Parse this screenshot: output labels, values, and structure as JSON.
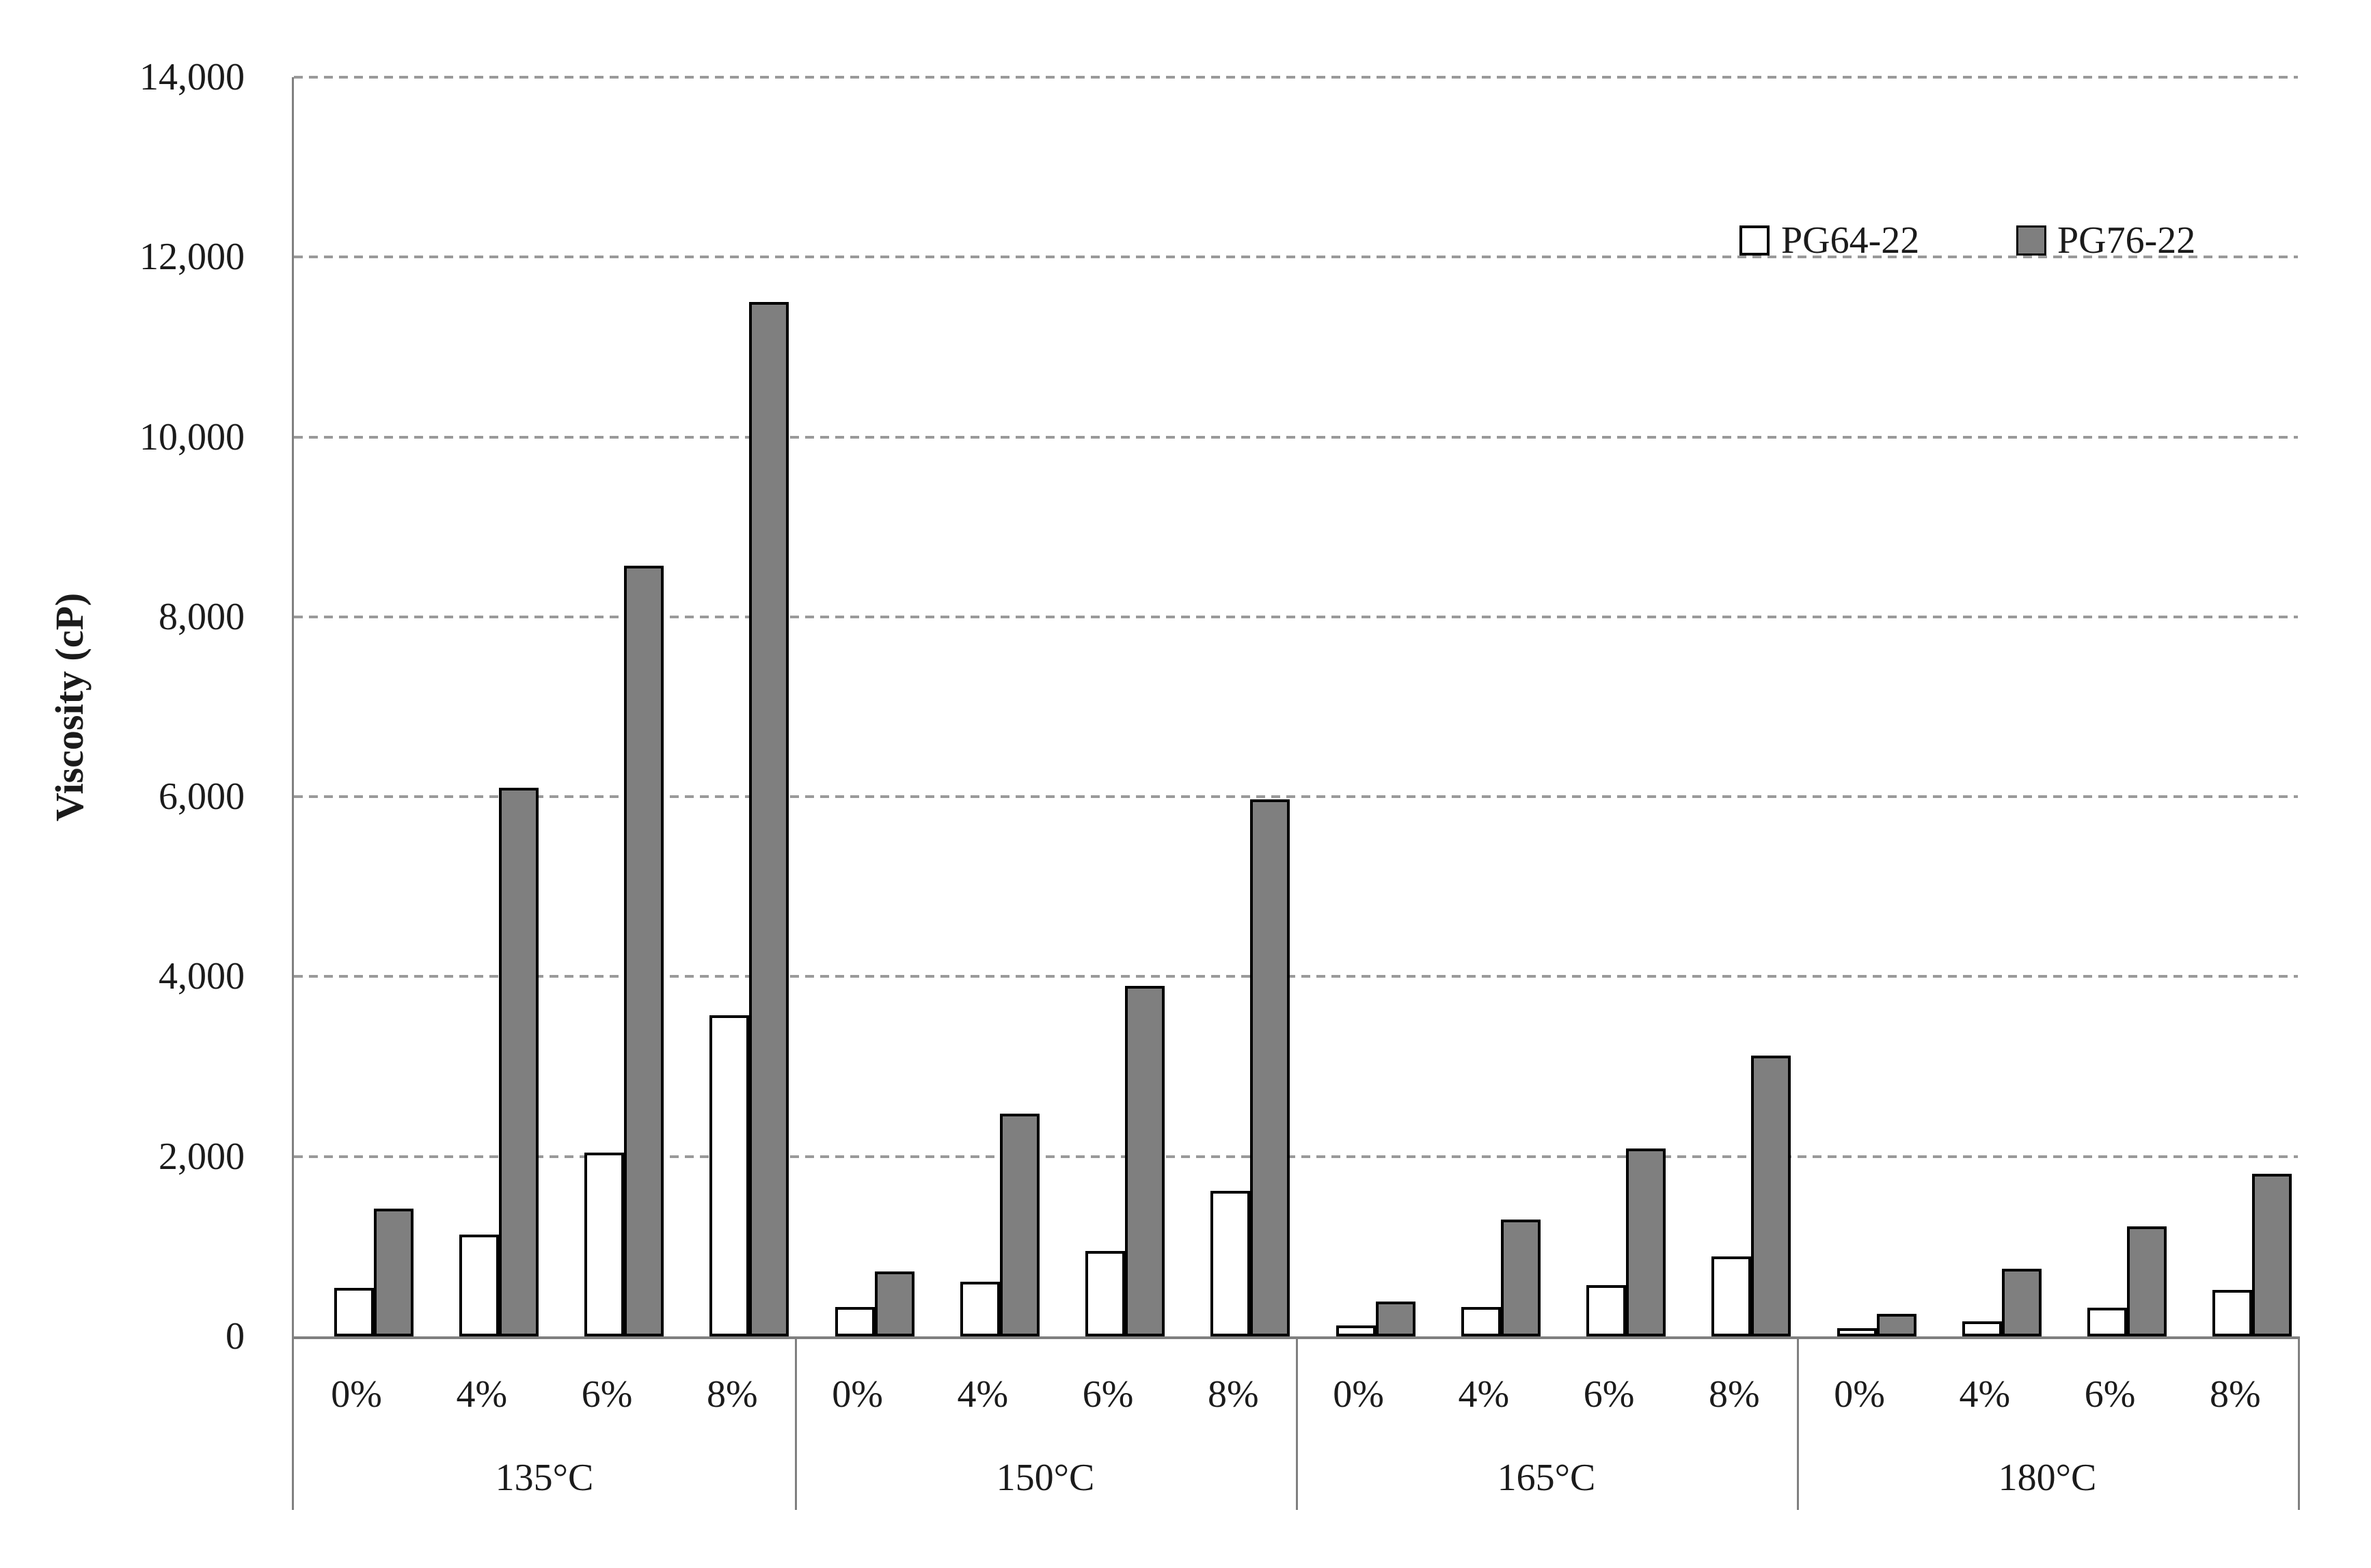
{
  "chart_data": {
    "type": "bar",
    "title": "",
    "xlabel": "",
    "ylabel": "Viscosity (cP)",
    "ylim": [
      0,
      14000
    ],
    "ytick_step": 2000,
    "yticks": [
      0,
      2000,
      4000,
      6000,
      8000,
      10000,
      12000,
      14000
    ],
    "ytick_labels": [
      "0",
      "2,000",
      "4,000",
      "6,000",
      "8,000",
      "10,000",
      "12,000",
      "14,000"
    ],
    "grid": "horizontal-dashed",
    "legend_position": "top-right-inside",
    "group_labels": [
      "135°C",
      "150°C",
      "165°C",
      "180°C"
    ],
    "categories": [
      "0%",
      "4%",
      "6%",
      "8%"
    ],
    "series": [
      {
        "name": "PG64-22",
        "fill": "#ffffff",
        "border": "#000000",
        "values": [
          [
            540,
            1130,
            2040,
            3570
          ],
          [
            330,
            610,
            950,
            1620
          ],
          [
            120,
            330,
            570,
            890
          ],
          [
            90,
            170,
            320,
            520
          ]
        ]
      },
      {
        "name": "PG76-22",
        "fill": "#7f7f7f",
        "border": "#000000",
        "values": [
          [
            1420,
            6100,
            8570,
            11500
          ],
          [
            720,
            2480,
            3900,
            5970
          ],
          [
            390,
            1300,
            2090,
            3120
          ],
          [
            250,
            750,
            1220,
            1810
          ]
        ]
      }
    ],
    "colors": {
      "grid": "#9a9a9a",
      "axis": "#808080",
      "bar_gray": "#7f7f7f",
      "bar_white": "#ffffff",
      "text": "#1b1b1b"
    }
  }
}
